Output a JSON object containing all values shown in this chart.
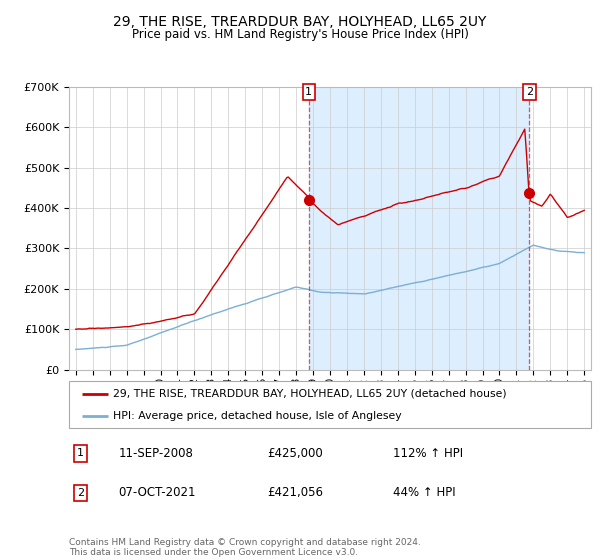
{
  "title": "29, THE RISE, TREARDDUR BAY, HOLYHEAD, LL65 2UY",
  "subtitle": "Price paid vs. HM Land Registry's House Price Index (HPI)",
  "legend_line1": "29, THE RISE, TREARDDUR BAY, HOLYHEAD, LL65 2UY (detached house)",
  "legend_line2": "HPI: Average price, detached house, Isle of Anglesey",
  "transaction1_date": "11-SEP-2008",
  "transaction1_price": "£425,000",
  "transaction1_hpi": "112% ↑ HPI",
  "transaction2_date": "07-OCT-2021",
  "transaction2_price": "£421,056",
  "transaction2_hpi": "44% ↑ HPI",
  "footnote": "Contains HM Land Registry data © Crown copyright and database right 2024.\nThis data is licensed under the Open Government Licence v3.0.",
  "red_color": "#cc0000",
  "blue_color": "#7bafd4",
  "shade_color": "#ddeeff",
  "marker1_x": 2008.75,
  "marker2_x": 2021.77,
  "ylim_max": 700000,
  "xlim_start": 1994.6,
  "xlim_end": 2025.4
}
